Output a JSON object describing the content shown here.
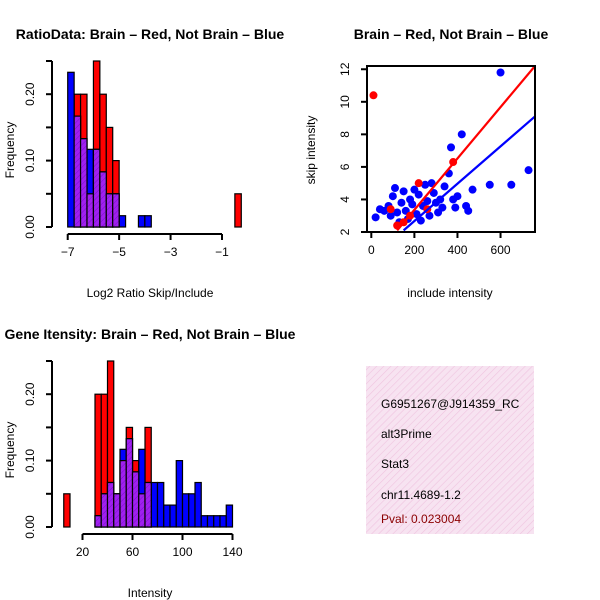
{
  "colors": {
    "red": "#ff0000",
    "blue": "#0000ff",
    "purple": "#a020f0",
    "purple_fill": "#a020f0",
    "pink_bg": "#f6dcee",
    "pval": "#8b0000"
  },
  "info_box": {
    "id": "G6951267@J914359_RC",
    "event_type": "alt3Prime",
    "gene": "Stat3",
    "location": "chr11.4689-1.2",
    "pval": "Pval: 0.023004"
  },
  "chart_data": [
    {
      "type": "histogram",
      "title": "RatioData: Brain – Red, Not Brain – Blue",
      "xlabel": "Log2 Ratio Skip/Include",
      "ylabel": "Frequency",
      "xlim": [
        -7.3,
        -0.3
      ],
      "ylim": [
        0,
        0.25
      ],
      "xticks": [
        -7,
        -5,
        -3,
        -1
      ],
      "xtick_labels": [
        "−7",
        "−5",
        "−3",
        "−1"
      ],
      "yticks": [
        0,
        0.1,
        0.2
      ],
      "ytick_labels": [
        "0.00",
        "0.10",
        "0.20"
      ],
      "bin_width": 0.25,
      "series": [
        {
          "name": "Brain",
          "color": "red",
          "bins": [
            [
              -6.75,
              0.2
            ],
            [
              -6.5,
              0.2
            ],
            [
              -6.25,
              0.05
            ],
            [
              -6.0,
              0.25
            ],
            [
              -5.75,
              0.2
            ],
            [
              -5.5,
              0.15
            ],
            [
              -5.25,
              0.1
            ],
            [
              -0.5,
              0.05
            ]
          ]
        },
        {
          "name": "Not Brain",
          "color": "blue",
          "bins": [
            [
              -7.0,
              0.233
            ],
            [
              -6.75,
              0.167
            ],
            [
              -6.5,
              0.133
            ],
            [
              -6.25,
              0.117
            ],
            [
              -6.0,
              0.117
            ],
            [
              -5.75,
              0.083
            ],
            [
              -5.5,
              0.05
            ],
            [
              -5.25,
              0.05
            ],
            [
              -5.0,
              0.017
            ],
            [
              -4.25,
              0.017
            ],
            [
              -4.0,
              0.017
            ]
          ]
        }
      ]
    },
    {
      "type": "scatter",
      "title": "Brain – Red, Not Brain – Blue",
      "xlabel": "include intensity",
      "ylabel": "skip intensity",
      "xlim": [
        -20,
        760
      ],
      "ylim": [
        2,
        12.2
      ],
      "xticks": [
        0,
        200,
        400,
        600
      ],
      "yticks": [
        2,
        4,
        6,
        8,
        10,
        12
      ],
      "series": [
        {
          "name": "Not Brain",
          "color": "blue",
          "points": [
            [
              20,
              2.9
            ],
            [
              40,
              3.4
            ],
            [
              60,
              3.3
            ],
            [
              80,
              3.6
            ],
            [
              90,
              3.0
            ],
            [
              100,
              4.2
            ],
            [
              110,
              4.7
            ],
            [
              120,
              3.2
            ],
            [
              130,
              2.6
            ],
            [
              140,
              3.8
            ],
            [
              150,
              4.5
            ],
            [
              160,
              3.3
            ],
            [
              170,
              2.8
            ],
            [
              180,
              4.0
            ],
            [
              190,
              3.7
            ],
            [
              200,
              4.6
            ],
            [
              210,
              3.1
            ],
            [
              220,
              4.3
            ],
            [
              230,
              2.7
            ],
            [
              240,
              3.6
            ],
            [
              250,
              4.9
            ],
            [
              260,
              3.9
            ],
            [
              270,
              3.0
            ],
            [
              280,
              5.0
            ],
            [
              290,
              4.4
            ],
            [
              300,
              3.8
            ],
            [
              310,
              3.2
            ],
            [
              320,
              4.0
            ],
            [
              330,
              3.5
            ],
            [
              340,
              4.8
            ],
            [
              360,
              5.6
            ],
            [
              370,
              7.2
            ],
            [
              380,
              4.0
            ],
            [
              390,
              3.5
            ],
            [
              400,
              4.2
            ],
            [
              420,
              8.0
            ],
            [
              440,
              3.6
            ],
            [
              450,
              3.3
            ],
            [
              470,
              4.6
            ],
            [
              550,
              4.9
            ],
            [
              600,
              11.8
            ],
            [
              650,
              4.9
            ],
            [
              730,
              5.8
            ]
          ]
        },
        {
          "name": "Brain",
          "color": "red",
          "points": [
            [
              10,
              10.4
            ],
            [
              90,
              3.4
            ],
            [
              120,
              2.4
            ],
            [
              150,
              2.6
            ],
            [
              180,
              3.0
            ],
            [
              220,
              5.0
            ],
            [
              260,
              3.4
            ],
            [
              380,
              6.3
            ]
          ]
        }
      ],
      "fit_lines": [
        {
          "name": "Brain fit",
          "color": "red",
          "points": [
            [
              120,
              2.1
            ],
            [
              760,
              12.2
            ]
          ]
        },
        {
          "name": "Not Brain fit",
          "color": "blue",
          "points": [
            [
              150,
              2.1
            ],
            [
              760,
              9.1
            ]
          ]
        }
      ]
    },
    {
      "type": "histogram",
      "title": "Gene Itensity: Brain – Red, Not Brain – Blue",
      "xlabel": "Intensity",
      "ylabel": "Frequency",
      "xlim": [
        2,
        146
      ],
      "ylim": [
        0,
        0.25
      ],
      "xticks": [
        20,
        60,
        100,
        140
      ],
      "xtick_labels": [
        "20",
        "60",
        "100",
        "140"
      ],
      "yticks": [
        0,
        0.1,
        0.2
      ],
      "ytick_labels": [
        "0.00",
        "0.10",
        "0.20"
      ],
      "bin_width": 5,
      "series": [
        {
          "name": "Brain",
          "color": "red",
          "bins": [
            [
              5,
              0.05
            ],
            [
              30,
              0.2
            ],
            [
              35,
              0.2
            ],
            [
              40,
              0.25
            ],
            [
              45,
              0.05
            ],
            [
              50,
              0.1
            ],
            [
              55,
              0.15
            ],
            [
              60,
              0.1
            ],
            [
              65,
              0.05
            ],
            [
              70,
              0.15
            ]
          ]
        },
        {
          "name": "Not Brain",
          "color": "blue",
          "bins": [
            [
              30,
              0.017
            ],
            [
              35,
              0.05
            ],
            [
              40,
              0.067
            ],
            [
              45,
              0.05
            ],
            [
              50,
              0.117
            ],
            [
              55,
              0.133
            ],
            [
              60,
              0.083
            ],
            [
              65,
              0.117
            ],
            [
              70,
              0.067
            ],
            [
              75,
              0.067
            ],
            [
              80,
              0.067
            ],
            [
              85,
              0.033
            ],
            [
              90,
              0.033
            ],
            [
              95,
              0.1
            ],
            [
              100,
              0.05
            ],
            [
              105,
              0.05
            ],
            [
              110,
              0.067
            ],
            [
              115,
              0.017
            ],
            [
              120,
              0.017
            ],
            [
              125,
              0.017
            ],
            [
              130,
              0.017
            ],
            [
              135,
              0.033
            ]
          ]
        }
      ]
    }
  ]
}
